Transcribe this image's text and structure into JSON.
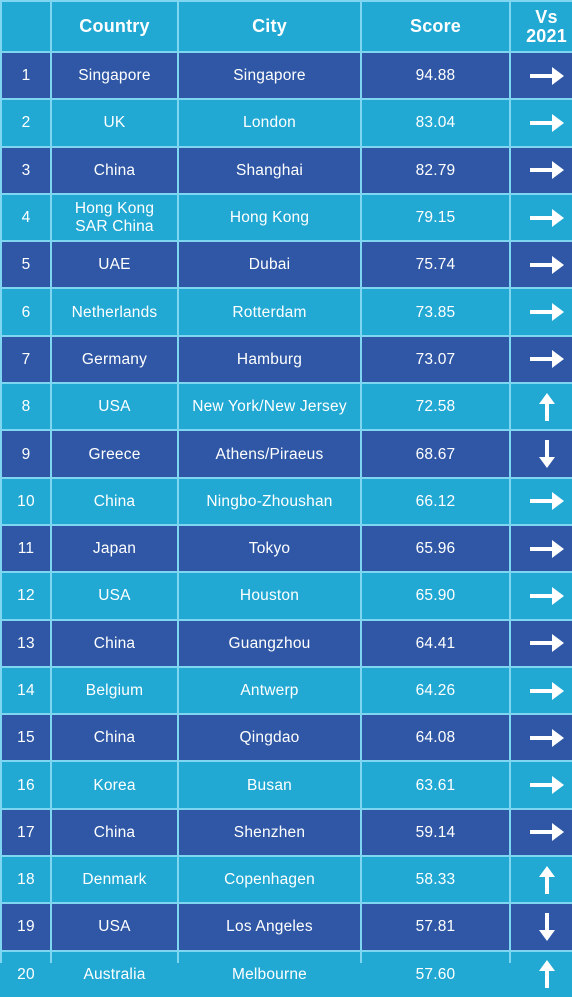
{
  "header": {
    "rank": "",
    "country": "Country",
    "city": "City",
    "score": "Score",
    "vs": "Vs\n2021"
  },
  "rows": [
    {
      "rank": "1",
      "country": "Singapore",
      "city": "Singapore",
      "score": "94.88",
      "trend": "same"
    },
    {
      "rank": "2",
      "country": "UK",
      "city": "London",
      "score": "83.04",
      "trend": "same"
    },
    {
      "rank": "3",
      "country": "China",
      "city": "Shanghai",
      "score": "82.79",
      "trend": "same"
    },
    {
      "rank": "4",
      "country": "Hong Kong SAR China",
      "city": "Hong Kong",
      "score": "79.15",
      "trend": "same"
    },
    {
      "rank": "5",
      "country": "UAE",
      "city": "Dubai",
      "score": "75.74",
      "trend": "same"
    },
    {
      "rank": "6",
      "country": "Netherlands",
      "city": "Rotterdam",
      "score": "73.85",
      "trend": "same"
    },
    {
      "rank": "7",
      "country": "Germany",
      "city": "Hamburg",
      "score": "73.07",
      "trend": "same"
    },
    {
      "rank": "8",
      "country": "USA",
      "city": "New York/New Jersey",
      "score": "72.58",
      "trend": "up"
    },
    {
      "rank": "9",
      "country": "Greece",
      "city": "Athens/Piraeus",
      "score": "68.67",
      "trend": "down"
    },
    {
      "rank": "10",
      "country": "China",
      "city": "Ningbo-Zhoushan",
      "score": "66.12",
      "trend": "same"
    },
    {
      "rank": "11",
      "country": "Japan",
      "city": "Tokyo",
      "score": "65.96",
      "trend": "same"
    },
    {
      "rank": "12",
      "country": "USA",
      "city": "Houston",
      "score": "65.90",
      "trend": "same"
    },
    {
      "rank": "13",
      "country": "China",
      "city": "Guangzhou",
      "score": "64.41",
      "trend": "same"
    },
    {
      "rank": "14",
      "country": "Belgium",
      "city": "Antwerp",
      "score": "64.26",
      "trend": "same"
    },
    {
      "rank": "15",
      "country": "China",
      "city": "Qingdao",
      "score": "64.08",
      "trend": "same"
    },
    {
      "rank": "16",
      "country": "Korea",
      "city": "Busan",
      "score": "63.61",
      "trend": "same"
    },
    {
      "rank": "17",
      "country": "China",
      "city": "Shenzhen",
      "score": "59.14",
      "trend": "same"
    },
    {
      "rank": "18",
      "country": "Denmark",
      "city": "Copenhagen",
      "score": "58.33",
      "trend": "up"
    },
    {
      "rank": "19",
      "country": "USA",
      "city": "Los Angeles",
      "score": "57.81",
      "trend": "down"
    },
    {
      "rank": "20",
      "country": "Australia",
      "city": "Melbourne",
      "score": "57.60",
      "trend": "up"
    }
  ],
  "trend_icons": {
    "same": "arrow-right-icon",
    "up": "arrow-up-icon",
    "down": "arrow-down-icon"
  },
  "colors": {
    "dark_row": "#2f57a5",
    "light_row": "#21a9d4",
    "grid_line": "#7fd6f0",
    "text": "#ffffff"
  }
}
